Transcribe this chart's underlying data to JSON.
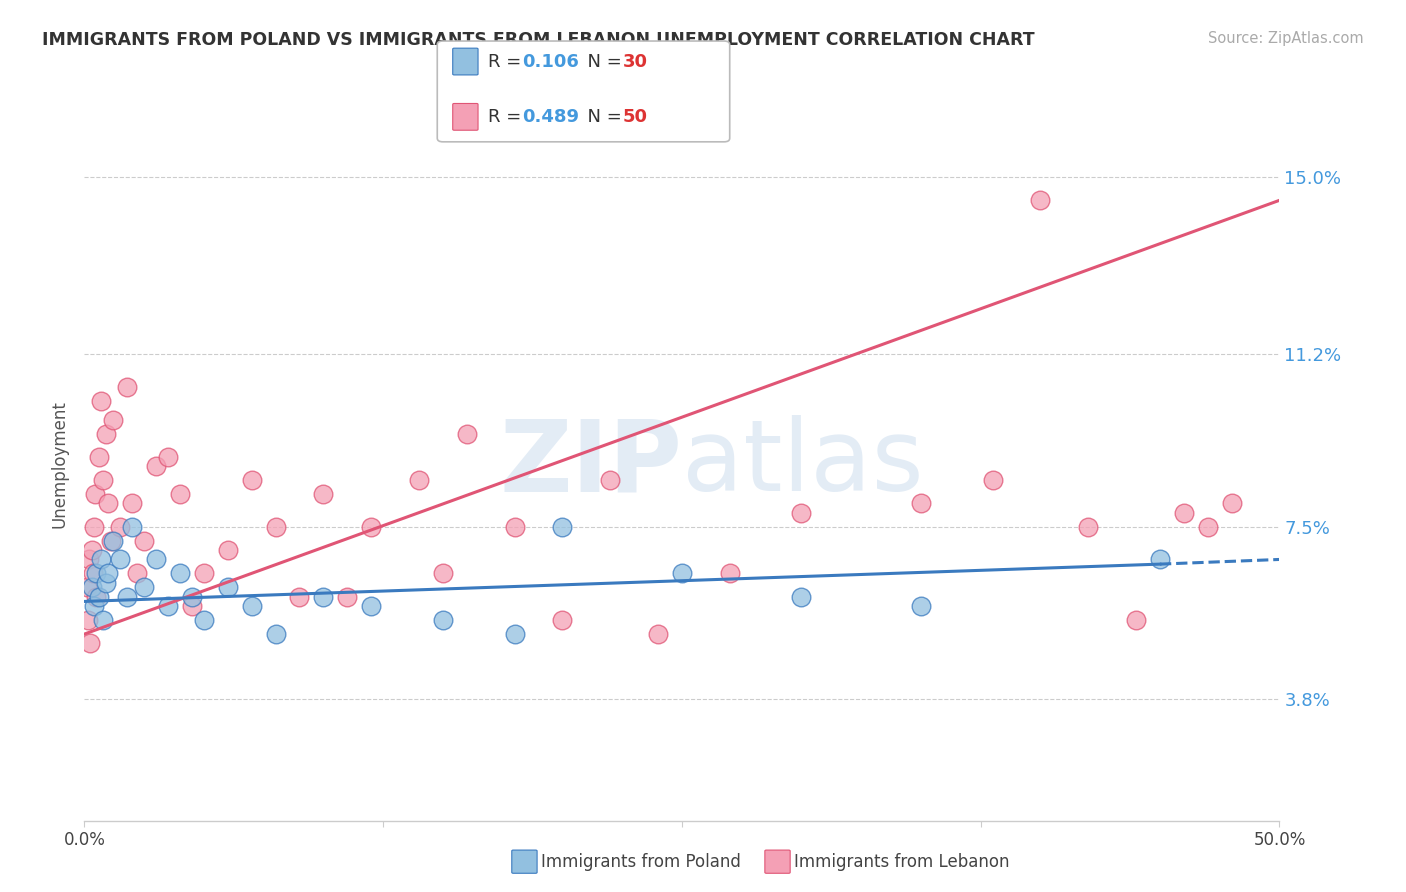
{
  "title": "IMMIGRANTS FROM POLAND VS IMMIGRANTS FROM LEBANON UNEMPLOYMENT CORRELATION CHART",
  "source": "Source: ZipAtlas.com",
  "ylabel": "Unemployment",
  "yticks": [
    3.8,
    7.5,
    11.2,
    15.0
  ],
  "ytick_labels": [
    "3.8%",
    "7.5%",
    "11.2%",
    "15.0%"
  ],
  "xmin": 0.0,
  "xmax": 50.0,
  "ymin": 1.2,
  "ymax": 16.5,
  "legend_blue_label": "Immigrants from Poland",
  "legend_pink_label": "Immigrants from Lebanon",
  "color_blue": "#92c0e0",
  "color_pink": "#f4a0b5",
  "color_blue_line": "#3a7abf",
  "color_pink_line": "#e05575",
  "watermark_zip": "ZIP",
  "watermark_atlas": "atlas",
  "poland_x": [
    0.3,
    0.4,
    0.5,
    0.6,
    0.7,
    0.8,
    0.9,
    1.0,
    1.2,
    1.5,
    1.8,
    2.0,
    2.5,
    3.0,
    3.5,
    4.0,
    4.5,
    5.0,
    6.0,
    7.0,
    8.0,
    10.0,
    12.0,
    15.0,
    18.0,
    20.0,
    25.0,
    30.0,
    35.0,
    45.0
  ],
  "poland_y": [
    6.2,
    5.8,
    6.5,
    6.0,
    6.8,
    5.5,
    6.3,
    6.5,
    7.2,
    6.8,
    6.0,
    7.5,
    6.2,
    6.8,
    5.8,
    6.5,
    6.0,
    5.5,
    6.2,
    5.8,
    5.2,
    6.0,
    5.8,
    5.5,
    5.2,
    7.5,
    6.5,
    6.0,
    5.8,
    6.8
  ],
  "lebanon_x": [
    0.1,
    0.15,
    0.2,
    0.25,
    0.3,
    0.35,
    0.4,
    0.45,
    0.5,
    0.6,
    0.7,
    0.8,
    0.9,
    1.0,
    1.1,
    1.2,
    1.5,
    1.8,
    2.0,
    2.2,
    2.5,
    3.0,
    3.5,
    4.0,
    4.5,
    5.0,
    6.0,
    7.0,
    8.0,
    9.0,
    10.0,
    11.0,
    12.0,
    14.0,
    15.0,
    16.0,
    18.0,
    20.0,
    22.0,
    24.0,
    27.0,
    30.0,
    35.0,
    38.0,
    40.0,
    42.0,
    44.0,
    46.0,
    47.0,
    48.0
  ],
  "lebanon_y": [
    6.2,
    5.5,
    6.8,
    5.0,
    7.0,
    6.5,
    7.5,
    8.2,
    6.0,
    9.0,
    10.2,
    8.5,
    9.5,
    8.0,
    7.2,
    9.8,
    7.5,
    10.5,
    8.0,
    6.5,
    7.2,
    8.8,
    9.0,
    8.2,
    5.8,
    6.5,
    7.0,
    8.5,
    7.5,
    6.0,
    8.2,
    6.0,
    7.5,
    8.5,
    6.5,
    9.5,
    7.5,
    5.5,
    8.5,
    5.2,
    6.5,
    7.8,
    8.0,
    8.5,
    14.5,
    7.5,
    5.5,
    7.8,
    7.5,
    8.0
  ],
  "trend_pink_x0": 0.0,
  "trend_pink_y0": 5.2,
  "trend_pink_x1": 50.0,
  "trend_pink_y1": 14.5,
  "trend_blue_x0": 0.0,
  "trend_blue_y0": 5.9,
  "trend_blue_solid_x1": 45.0,
  "trend_blue_solid_y1": 6.7,
  "trend_blue_dash_x1": 50.0,
  "trend_blue_dash_y1": 6.8
}
